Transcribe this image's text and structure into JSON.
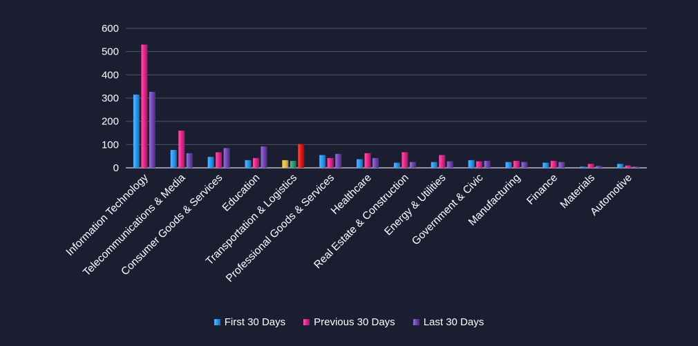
{
  "chart_data": {
    "type": "bar",
    "title": "",
    "xlabel": "",
    "ylabel": "",
    "ylim": [
      0,
      600
    ],
    "yticks": [
      0,
      100,
      200,
      300,
      400,
      500,
      600
    ],
    "grid": true,
    "legend_position": "bottom",
    "categories": [
      "Information Technology",
      "Telecommunications & Media",
      "Consumer Goods &  Services",
      "Education",
      "Transportation & Logistics",
      "Professional Goods & Services",
      "Healthcare",
      "Real Estate & Construction",
      "Energy & Utilities",
      "Government & Civic",
      "Manufacturing",
      "Finance",
      "Materials",
      "Automotive"
    ],
    "series": [
      {
        "name": "First 30 Days",
        "color": "#2196f3",
        "values": [
          315,
          77,
          47,
          33,
          33,
          55,
          37,
          22,
          25,
          33,
          25,
          22,
          5,
          17
        ]
      },
      {
        "name": "Previous 30 Days",
        "color": "#e91e8c",
        "values": [
          530,
          160,
          67,
          42,
          30,
          42,
          63,
          67,
          55,
          28,
          30,
          30,
          17,
          10
        ]
      },
      {
        "name": "Last 30 Days",
        "color": "#6f3fb5",
        "values": [
          327,
          63,
          85,
          92,
          102,
          60,
          42,
          25,
          28,
          30,
          25,
          25,
          8,
          5
        ]
      }
    ],
    "highlight_colors": {
      "Transportation & Logistics": [
        "#e6c040",
        "#1f9a6a",
        "#e01010"
      ]
    },
    "gridline_color": "#50546a",
    "text_color": "#ffffff"
  }
}
